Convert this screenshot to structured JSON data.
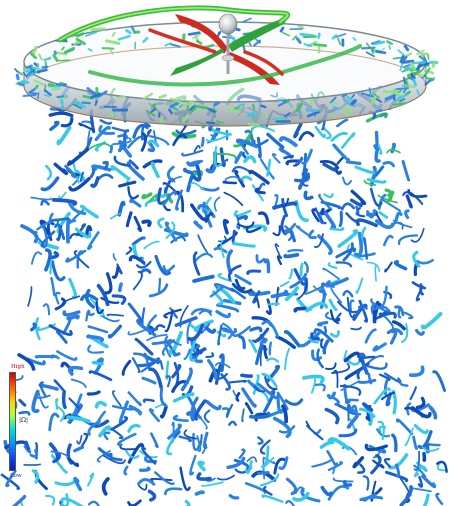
{
  "image": {
    "subject": "vortex-wake-visualization",
    "palette": {
      "background": "#ffffff",
      "vortex_blue": "#1f6fd6",
      "vortex_cyan": "#37c9e8",
      "vortex_green": "#36c25a",
      "vortex_red": "#d8261c",
      "ring_glass": "#c9d2d8"
    }
  },
  "colorbar": {
    "high_label": "High",
    "mid_label": "|Ω|",
    "low_label": "Low"
  }
}
